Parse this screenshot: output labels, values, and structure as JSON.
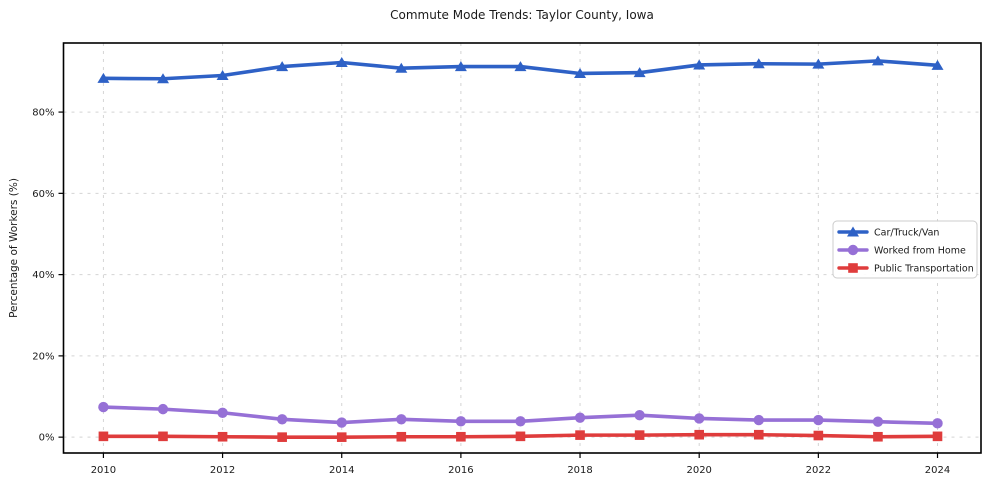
{
  "chart_data": {
    "type": "line",
    "title": "Commute Mode Trends: Taylor County, Iowa",
    "xlabel": "",
    "ylabel": "Percentage of Workers (%)",
    "x": [
      2010,
      2011,
      2012,
      2013,
      2014,
      2015,
      2016,
      2017,
      2018,
      2019,
      2020,
      2021,
      2022,
      2023,
      2024
    ],
    "series": [
      {
        "name": "Car/Truck/Van",
        "color": "#2e61c6",
        "marker": "triangle",
        "values": [
          88.3,
          88.2,
          89.0,
          91.2,
          92.2,
          90.8,
          91.2,
          91.2,
          89.5,
          89.7,
          91.6,
          91.9,
          91.8,
          92.6,
          91.5
        ]
      },
      {
        "name": "Worked from Home",
        "color": "#9670d6",
        "marker": "circle",
        "values": [
          7.4,
          6.9,
          6.0,
          4.4,
          3.6,
          4.4,
          3.9,
          3.9,
          4.8,
          5.4,
          4.6,
          4.2,
          4.2,
          3.8,
          3.4
        ]
      },
      {
        "name": "Public Transportation",
        "color": "#df3c3c",
        "marker": "square",
        "values": [
          0.2,
          0.2,
          0.1,
          0.0,
          0.0,
          0.1,
          0.1,
          0.2,
          0.5,
          0.5,
          0.6,
          0.6,
          0.4,
          0.1,
          0.2
        ]
      }
    ],
    "ytick_values": [
      0,
      20,
      40,
      60,
      80
    ],
    "ytick_labels": [
      "0%",
      "20%",
      "40%",
      "60%",
      "80%"
    ],
    "xtick_values": [
      2010,
      2012,
      2014,
      2016,
      2018,
      2020,
      2022,
      2024
    ],
    "xtick_labels": [
      "2010",
      "2012",
      "2014",
      "2016",
      "2018",
      "2020",
      "2022",
      "2024"
    ],
    "ylim": [
      -3.9,
      97
    ],
    "xlim": [
      2009.33,
      2024.73
    ],
    "grid": true,
    "grid_style": "dashed",
    "grid_color": "#d4d4d4",
    "spine_color": "#000000",
    "background_color": "#ffffff",
    "legend_position": "center right"
  }
}
